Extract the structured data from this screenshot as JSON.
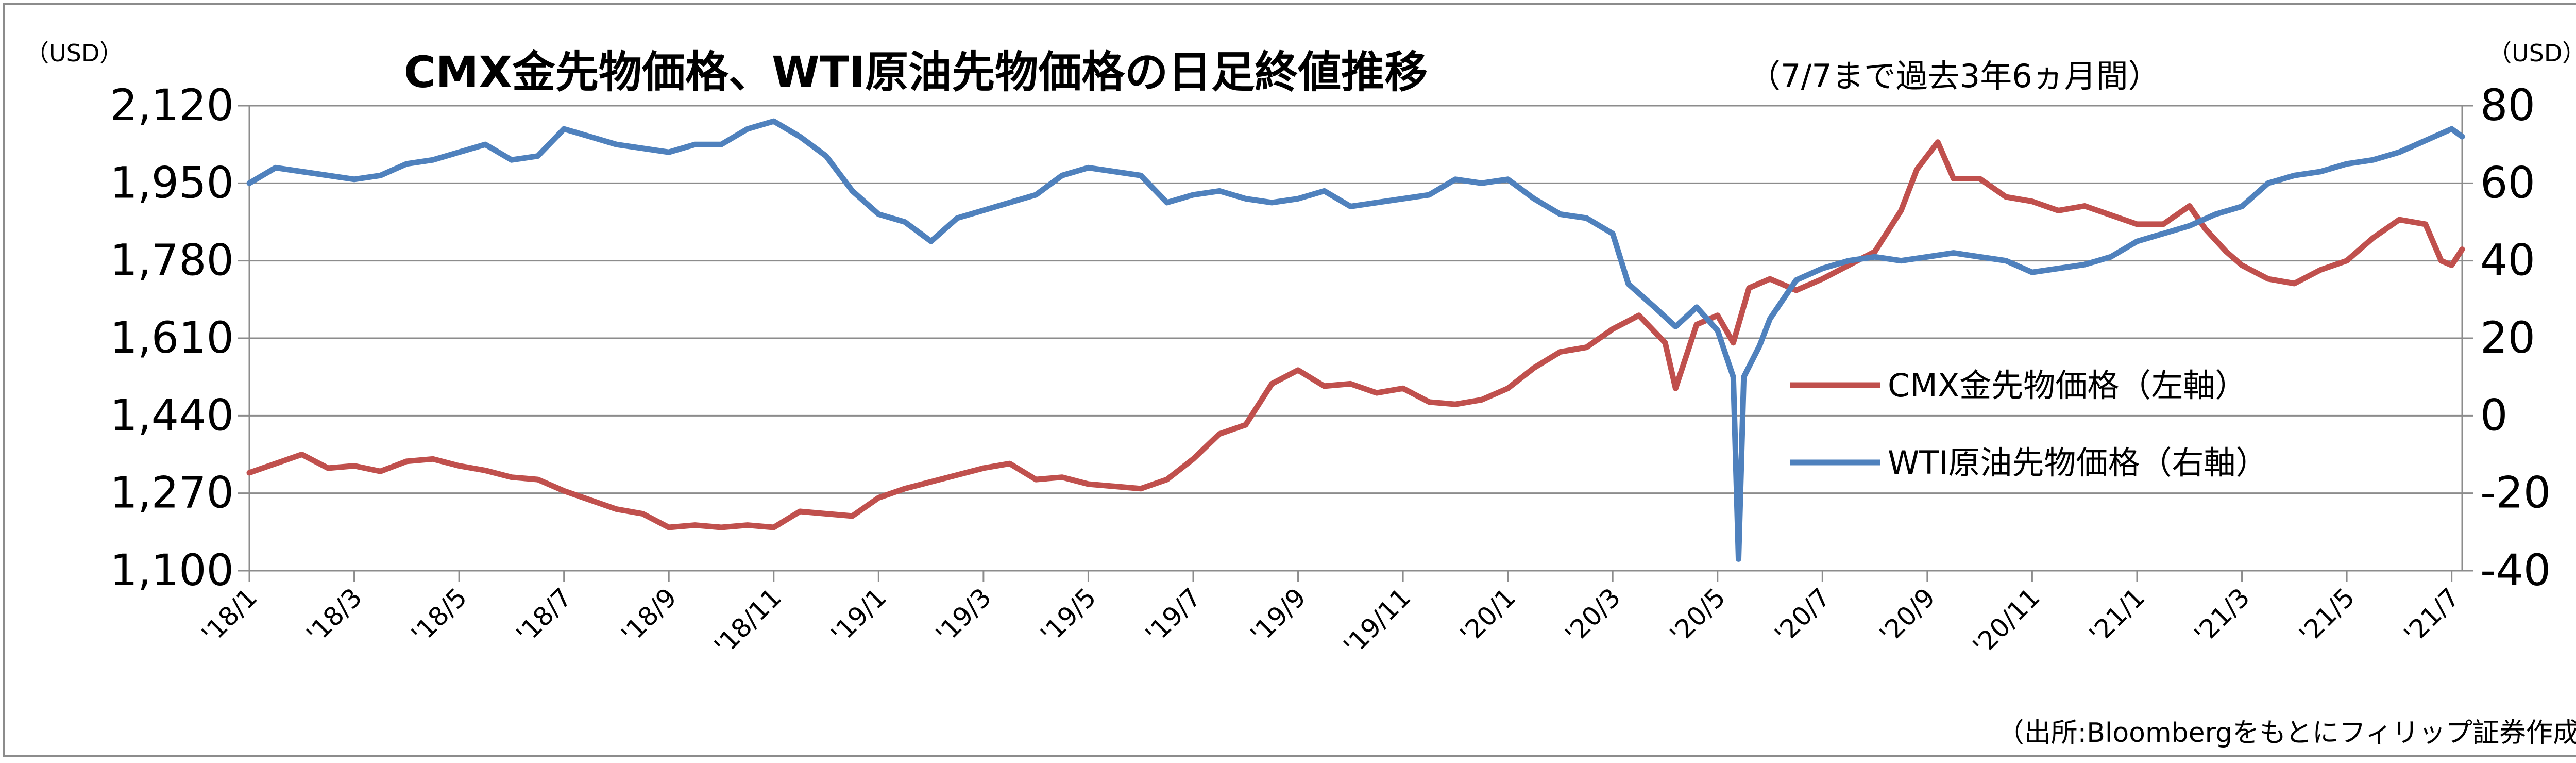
{
  "chart_data": {
    "type": "line",
    "title": "CMX金先物価格、WTI原油先物価格の日足終値推移",
    "subtitle": "（7/7まで過去3年6ヵ月間）",
    "y_left_unit": "（USD）",
    "y_right_unit": "（USD）",
    "y_left_ticks": [
      "2,120",
      "1,950",
      "1,780",
      "1,610",
      "1,440",
      "1,270",
      "1,100"
    ],
    "y_right_ticks": [
      "80",
      "60",
      "40",
      "20",
      "0",
      "-20",
      "-40"
    ],
    "ylim_left": [
      1100,
      2120
    ],
    "ylim_right": [
      -40,
      80
    ],
    "negative_tick_color": "#ff0000",
    "x_ticks": [
      "'18/1",
      "'18/3",
      "'18/5",
      "'18/7",
      "'18/9",
      "'18/11",
      "'19/1",
      "'19/3",
      "'19/5",
      "'19/7",
      "'19/9",
      "'19/11",
      "'20/1",
      "'20/3",
      "'20/5",
      "'20/7",
      "'20/9",
      "'20/11",
      "'21/1",
      "'21/3",
      "'21/5",
      "'21/7"
    ],
    "x_range_months": [
      0,
      42.2
    ],
    "grid": "horizontal",
    "legend_position": "center-right",
    "series": [
      {
        "name": "CMX金先物価格（左軸）",
        "axis": "left",
        "color": "#c0504d",
        "points": [
          [
            0,
            1315
          ],
          [
            0.5,
            1335
          ],
          [
            1.0,
            1355
          ],
          [
            1.5,
            1325
          ],
          [
            2.0,
            1330
          ],
          [
            2.5,
            1318
          ],
          [
            3.0,
            1340
          ],
          [
            3.5,
            1345
          ],
          [
            4.0,
            1330
          ],
          [
            4.5,
            1320
          ],
          [
            5.0,
            1305
          ],
          [
            5.5,
            1300
          ],
          [
            6.0,
            1275
          ],
          [
            6.5,
            1255
          ],
          [
            7.0,
            1235
          ],
          [
            7.5,
            1225
          ],
          [
            8.0,
            1195
          ],
          [
            8.5,
            1200
          ],
          [
            9.0,
            1195
          ],
          [
            9.5,
            1200
          ],
          [
            10.0,
            1195
          ],
          [
            10.5,
            1230
          ],
          [
            11.0,
            1225
          ],
          [
            11.5,
            1220
          ],
          [
            12.0,
            1260
          ],
          [
            12.5,
            1280
          ],
          [
            13.0,
            1295
          ],
          [
            13.5,
            1310
          ],
          [
            14.0,
            1325
          ],
          [
            14.5,
            1335
          ],
          [
            15.0,
            1300
          ],
          [
            15.5,
            1305
          ],
          [
            16.0,
            1290
          ],
          [
            16.5,
            1285
          ],
          [
            17.0,
            1280
          ],
          [
            17.5,
            1300
          ],
          [
            18.0,
            1345
          ],
          [
            18.5,
            1400
          ],
          [
            19.0,
            1420
          ],
          [
            19.5,
            1510
          ],
          [
            20.0,
            1540
          ],
          [
            20.5,
            1505
          ],
          [
            21.0,
            1510
          ],
          [
            21.5,
            1490
          ],
          [
            22.0,
            1500
          ],
          [
            22.5,
            1470
          ],
          [
            23.0,
            1465
          ],
          [
            23.5,
            1475
          ],
          [
            24.0,
            1500
          ],
          [
            24.5,
            1545
          ],
          [
            25.0,
            1580
          ],
          [
            25.5,
            1590
          ],
          [
            26.0,
            1630
          ],
          [
            26.5,
            1660
          ],
          [
            27.0,
            1600
          ],
          [
            27.2,
            1500
          ],
          [
            27.6,
            1640
          ],
          [
            28.0,
            1660
          ],
          [
            28.3,
            1600
          ],
          [
            28.6,
            1720
          ],
          [
            29.0,
            1740
          ],
          [
            29.5,
            1715
          ],
          [
            30.0,
            1740
          ],
          [
            30.5,
            1770
          ],
          [
            31.0,
            1800
          ],
          [
            31.5,
            1890
          ],
          [
            31.8,
            1980
          ],
          [
            32.2,
            2040
          ],
          [
            32.5,
            1960
          ],
          [
            33.0,
            1960
          ],
          [
            33.5,
            1920
          ],
          [
            34.0,
            1910
          ],
          [
            34.5,
            1890
          ],
          [
            35.0,
            1900
          ],
          [
            35.5,
            1880
          ],
          [
            36.0,
            1860
          ],
          [
            36.5,
            1860
          ],
          [
            37.0,
            1900
          ],
          [
            37.3,
            1850
          ],
          [
            37.7,
            1800
          ],
          [
            38.0,
            1770
          ],
          [
            38.5,
            1740
          ],
          [
            39.0,
            1730
          ],
          [
            39.5,
            1760
          ],
          [
            40.0,
            1780
          ],
          [
            40.5,
            1830
          ],
          [
            41.0,
            1870
          ],
          [
            41.5,
            1860
          ],
          [
            41.8,
            1780
          ],
          [
            42.0,
            1770
          ],
          [
            42.2,
            1805
          ]
        ]
      },
      {
        "name": "WTI原油先物価格（右軸）",
        "axis": "right",
        "color": "#4f81bd",
        "points": [
          [
            0,
            60
          ],
          [
            0.5,
            64
          ],
          [
            1.0,
            63
          ],
          [
            1.5,
            62
          ],
          [
            2.0,
            61
          ],
          [
            2.5,
            62
          ],
          [
            3.0,
            65
          ],
          [
            3.5,
            66
          ],
          [
            4.0,
            68
          ],
          [
            4.5,
            70
          ],
          [
            5.0,
            66
          ],
          [
            5.5,
            67
          ],
          [
            6.0,
            74
          ],
          [
            6.5,
            72
          ],
          [
            7.0,
            70
          ],
          [
            7.5,
            69
          ],
          [
            8.0,
            68
          ],
          [
            8.5,
            70
          ],
          [
            9.0,
            70
          ],
          [
            9.5,
            74
          ],
          [
            10.0,
            76
          ],
          [
            10.5,
            72
          ],
          [
            11.0,
            67
          ],
          [
            11.5,
            58
          ],
          [
            12.0,
            52
          ],
          [
            12.5,
            50
          ],
          [
            13.0,
            45
          ],
          [
            13.5,
            51
          ],
          [
            14.0,
            53
          ],
          [
            14.5,
            55
          ],
          [
            15.0,
            57
          ],
          [
            15.5,
            62
          ],
          [
            16.0,
            64
          ],
          [
            16.5,
            63
          ],
          [
            17.0,
            62
          ],
          [
            17.5,
            55
          ],
          [
            18.0,
            57
          ],
          [
            18.5,
            58
          ],
          [
            19.0,
            56
          ],
          [
            19.5,
            55
          ],
          [
            20.0,
            56
          ],
          [
            20.5,
            58
          ],
          [
            21.0,
            54
          ],
          [
            21.5,
            55
          ],
          [
            22.0,
            56
          ],
          [
            22.5,
            57
          ],
          [
            23.0,
            61
          ],
          [
            23.5,
            60
          ],
          [
            24.0,
            61
          ],
          [
            24.5,
            56
          ],
          [
            25.0,
            52
          ],
          [
            25.5,
            51
          ],
          [
            26.0,
            47
          ],
          [
            26.3,
            34
          ],
          [
            26.8,
            28
          ],
          [
            27.2,
            23
          ],
          [
            27.6,
            28
          ],
          [
            28.0,
            22
          ],
          [
            28.3,
            10
          ],
          [
            28.4,
            -37
          ],
          [
            28.5,
            10
          ],
          [
            28.8,
            18
          ],
          [
            29.0,
            25
          ],
          [
            29.5,
            35
          ],
          [
            30.0,
            38
          ],
          [
            30.5,
            40
          ],
          [
            31.0,
            41
          ],
          [
            31.5,
            40
          ],
          [
            32.0,
            41
          ],
          [
            32.5,
            42
          ],
          [
            33.0,
            41
          ],
          [
            33.5,
            40
          ],
          [
            34.0,
            37
          ],
          [
            34.5,
            38
          ],
          [
            35.0,
            39
          ],
          [
            35.5,
            41
          ],
          [
            36.0,
            45
          ],
          [
            36.5,
            47
          ],
          [
            37.0,
            49
          ],
          [
            37.5,
            52
          ],
          [
            38.0,
            54
          ],
          [
            38.5,
            60
          ],
          [
            39.0,
            62
          ],
          [
            39.5,
            63
          ],
          [
            40.0,
            65
          ],
          [
            40.5,
            66
          ],
          [
            41.0,
            68
          ],
          [
            41.5,
            71
          ],
          [
            42.0,
            74
          ],
          [
            42.2,
            72
          ]
        ]
      }
    ]
  },
  "source": "（出所:Bloombergをもとにフィリップ証券作成）"
}
